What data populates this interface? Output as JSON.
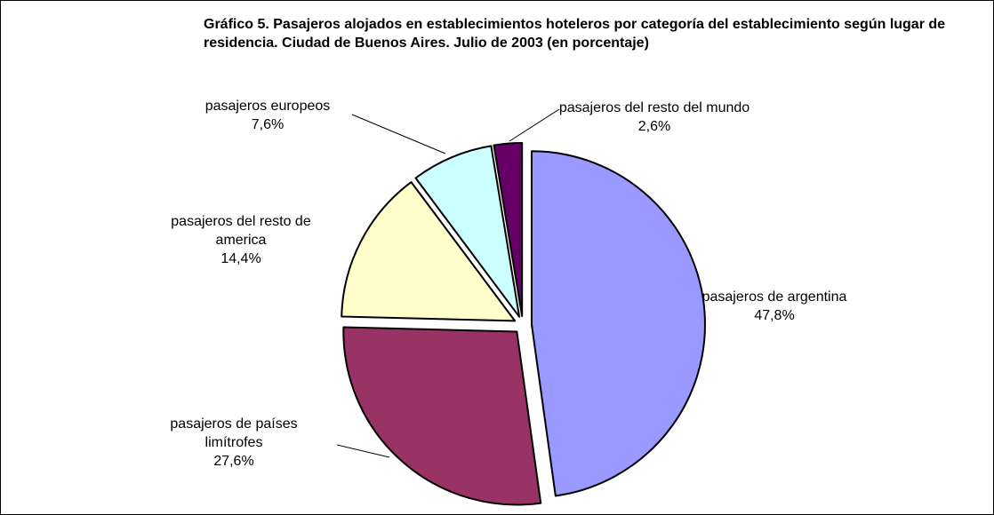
{
  "chart_data": {
    "type": "pie",
    "title": "Gráfico 5. Pasajeros alojados en establecimientos hoteleros por categoría del establecimiento según lugar de residencia. Ciudad de Buenos Aires. Julio de 2003 (en porcentaje)",
    "categories": [
      "pasajeros de argentina",
      "pasajeros de países limítrofes",
      "pasajeros del resto de america",
      "pasajeros europeos",
      "pasajeros del resto del mundo"
    ],
    "values": [
      47.8,
      27.6,
      14.4,
      7.6,
      2.6
    ],
    "value_labels": [
      "47,8%",
      "27,6%",
      "14,4%",
      "7,6%",
      "2,6%"
    ],
    "colors": [
      "#9999ff",
      "#993366",
      "#ffffcc",
      "#ccffff",
      "#660066"
    ]
  }
}
